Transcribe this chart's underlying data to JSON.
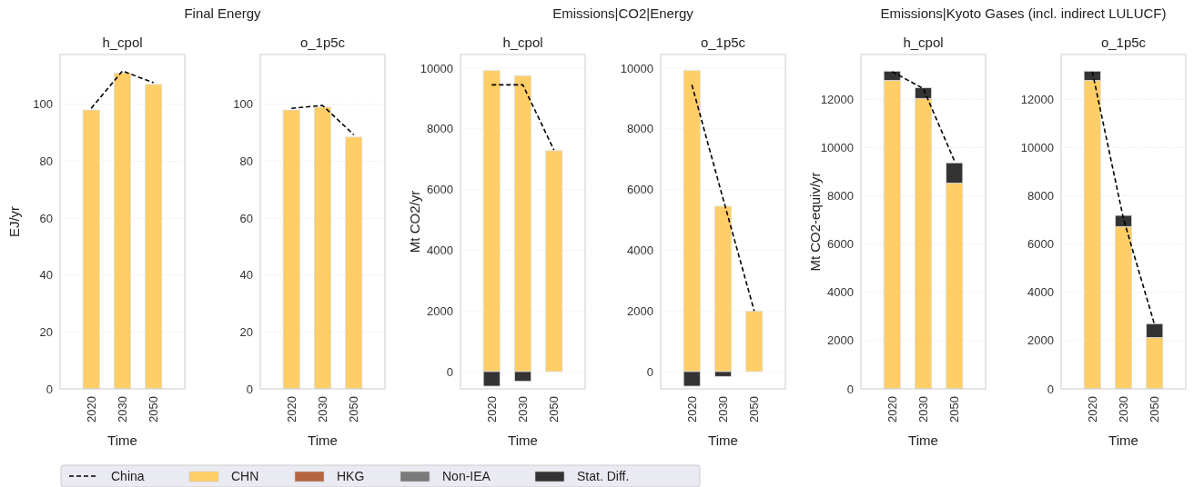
{
  "chart_data": [
    {
      "type": "bar",
      "title": "Final Energy",
      "subtitle": "h_cpol",
      "xlabel": "Time",
      "ylabel": "EJ/yr",
      "categories": [
        "2020",
        "2030",
        "2050"
      ],
      "stacked": true,
      "grid": "y",
      "legend": "bottom",
      "ylim": [
        0,
        117.5
      ],
      "yticks": [
        0,
        20,
        40,
        60,
        80,
        100
      ],
      "series": [
        {
          "name": "China",
          "type": "line",
          "line_style": "dashed",
          "marker": "none",
          "color": "#000000",
          "values": [
            98.6,
            111.7,
            107.6
          ]
        },
        {
          "name": "CHN",
          "color": "#ffce66",
          "values": [
            98,
            111,
            107
          ]
        },
        {
          "name": "HKG",
          "color": "#b5643f",
          "values": [
            null,
            null,
            null
          ]
        },
        {
          "name": "Non-IEA",
          "color": "#7a7a7a",
          "values": [
            null,
            null,
            null
          ]
        },
        {
          "name": "Stat. Diff.",
          "color": "#333333",
          "values": [
            0,
            0,
            0
          ]
        }
      ]
    },
    {
      "type": "bar",
      "subtitle": "o_1p5c",
      "xlabel": "Time",
      "categories": [
        "2020",
        "2030",
        "2050"
      ],
      "stacked": true,
      "grid": "y",
      "ylim": [
        0,
        117.5
      ],
      "yticks": [
        0,
        20,
        40,
        60,
        80,
        100
      ],
      "series": [
        {
          "type": "line",
          "line_style": "dashed",
          "marker": "none",
          "color": "#000000",
          "values": [
            98.6,
            99.6,
            89.3
          ]
        },
        {
          "color": "#ffce66",
          "values": [
            98,
            99,
            88.5
          ]
        },
        {
          "color": "#333333",
          "values": [
            0,
            0,
            0
          ]
        }
      ]
    },
    {
      "type": "bar",
      "title": "Emissions|CO2|Energy",
      "subtitle": "h_cpol",
      "xlabel": "Time",
      "ylabel": "Mt CO2/yr",
      "categories": [
        "2020",
        "2030",
        "2050"
      ],
      "stacked": true,
      "grid": "y",
      "ylim": [
        -570,
        10450
      ],
      "yticks": [
        0,
        2000,
        4000,
        6000,
        8000,
        10000
      ],
      "series": [
        {
          "type": "line",
          "line_style": "dashed",
          "marker": "none",
          "color": "#000000",
          "values": [
            9450,
            9450,
            7300
          ]
        },
        {
          "color": "#ffce66",
          "values": [
            9920,
            9750,
            7280
          ]
        },
        {
          "color": "#b5643f",
          "values": [
            0,
            0,
            0
          ]
        },
        {
          "color": "#7a7a7a",
          "values": [
            0,
            0,
            0
          ]
        },
        {
          "color": "#333333",
          "values": [
            -480,
            -320,
            0
          ]
        }
      ]
    },
    {
      "type": "bar",
      "subtitle": "o_1p5c",
      "xlabel": "Time",
      "categories": [
        "2020",
        "2030",
        "2050"
      ],
      "stacked": true,
      "grid": "y",
      "ylim": [
        -570,
        10450
      ],
      "yticks": [
        0,
        2000,
        4000,
        6000,
        8000,
        10000
      ],
      "series": [
        {
          "type": "line",
          "line_style": "dashed",
          "marker": "none",
          "color": "#000000",
          "values": [
            9450,
            5700,
            2000
          ]
        },
        {
          "color": "#ffce66",
          "values": [
            9920,
            5450,
            1990
          ]
        },
        {
          "color": "#b5643f",
          "values": [
            0,
            0,
            0
          ]
        },
        {
          "color": "#7a7a7a",
          "values": [
            0,
            0,
            0
          ]
        },
        {
          "color": "#333333",
          "values": [
            -480,
            -160,
            0
          ]
        }
      ]
    },
    {
      "type": "bar",
      "title": "Emissions|Kyoto Gases (incl. indirect LULUCF)",
      "subtitle": "h_cpol",
      "xlabel": "Time",
      "ylabel": "Mt CO2-equiv/yr",
      "categories": [
        "2020",
        "2030",
        "2050"
      ],
      "stacked": true,
      "grid": "y",
      "ylim": [
        0,
        13860
      ],
      "yticks": [
        0,
        2000,
        4000,
        6000,
        8000,
        10000,
        12000
      ],
      "series": [
        {
          "type": "line",
          "line_style": "dashed",
          "marker": "none",
          "color": "#000000",
          "values": [
            13150,
            12450,
            9450
          ]
        },
        {
          "color": "#ffce66",
          "values": [
            12790,
            12040,
            8530
          ]
        },
        {
          "color": "#b5643f",
          "values": [
            0,
            0,
            0
          ]
        },
        {
          "color": "#7a7a7a",
          "values": [
            0,
            0,
            0
          ]
        },
        {
          "color": "#333333",
          "values": [
            380,
            440,
            840
          ]
        }
      ]
    },
    {
      "type": "bar",
      "subtitle": "o_1p5c",
      "xlabel": "Time",
      "categories": [
        "2020",
        "2030",
        "2050"
      ],
      "stacked": true,
      "grid": "y",
      "ylim": [
        0,
        13860
      ],
      "yticks": [
        0,
        2000,
        4000,
        6000,
        8000,
        10000,
        12000
      ],
      "series": [
        {
          "type": "line",
          "line_style": "dashed",
          "marker": "none",
          "color": "#000000",
          "values": [
            13150,
            7050,
            2650
          ]
        },
        {
          "color": "#ffce66",
          "values": [
            12790,
            6730,
            2130
          ]
        },
        {
          "color": "#b5643f",
          "values": [
            0,
            0,
            0
          ]
        },
        {
          "color": "#7a7a7a",
          "values": [
            0,
            0,
            0
          ]
        },
        {
          "color": "#333333",
          "values": [
            380,
            460,
            570
          ]
        }
      ]
    }
  ]
}
